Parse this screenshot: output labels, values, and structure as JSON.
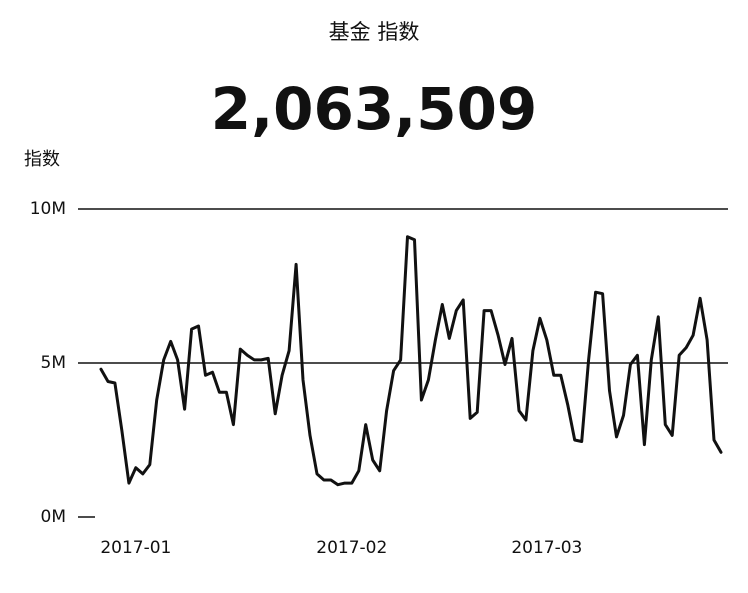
{
  "chart_data": {
    "type": "line",
    "title": "基金 指数",
    "big_number": "2,063,509",
    "y_label": "指数",
    "categories": [
      null,
      null,
      null,
      null,
      null,
      "2017-01",
      null,
      null,
      null,
      null,
      null,
      null,
      null,
      null,
      null,
      null,
      null,
      null,
      null,
      null,
      null,
      null,
      null,
      null,
      null,
      null,
      null,
      null,
      null,
      null,
      null,
      null,
      null,
      null,
      null,
      null,
      "2017-02",
      null,
      null,
      null,
      null,
      null,
      null,
      null,
      null,
      null,
      null,
      null,
      null,
      null,
      null,
      null,
      null,
      null,
      null,
      null,
      null,
      null,
      null,
      null,
      null,
      null,
      null,
      null,
      "2017-03",
      null,
      null,
      null,
      null,
      null,
      null,
      null,
      null,
      null,
      null,
      null,
      null,
      null,
      null,
      null,
      null,
      null,
      null,
      null,
      null,
      null,
      null,
      null,
      null,
      null
    ],
    "series": [
      {
        "color": "#111111",
        "values": [
          4800000,
          4400000,
          4350000,
          2800000,
          1100000,
          1600000,
          1400000,
          1700000,
          3800000,
          5100000,
          5700000,
          5100000,
          3500000,
          6100000,
          6200000,
          4600000,
          4700000,
          4050000,
          4050000,
          3000000,
          5450000,
          5250000,
          5100000,
          5100000,
          5150000,
          3350000,
          4600000,
          5400000,
          8200000,
          4450000,
          2650000,
          1400000,
          1200000,
          1200000,
          1050000,
          1100000,
          1100000,
          1500000,
          3000000,
          1850000,
          1500000,
          3450000,
          4750000,
          5100000,
          9100000,
          9000000,
          3800000,
          4450000,
          5750000,
          6900000,
          5800000,
          6700000,
          7050000,
          3200000,
          3400000,
          6700000,
          6700000,
          5900000,
          4950000,
          5800000,
          3450000,
          3150000,
          5400000,
          6450000,
          5750000,
          4600000,
          4600000,
          3650000,
          2500000,
          2450000,
          5100000,
          7300000,
          7250000,
          4100000,
          2600000,
          3300000,
          4950000,
          5250000,
          2350000,
          5100000,
          6500000,
          3000000,
          2650000,
          5250000,
          5500000,
          5900000,
          7100000,
          5750000,
          2500000,
          2100000
        ]
      }
    ],
    "ylim": [
      0,
      10000000
    ],
    "yticks": [
      {
        "value": 0,
        "label": "0M"
      },
      {
        "value": 5000000,
        "label": "5M"
      },
      {
        "value": 10000000,
        "label": "10M"
      }
    ],
    "grid": true
  }
}
